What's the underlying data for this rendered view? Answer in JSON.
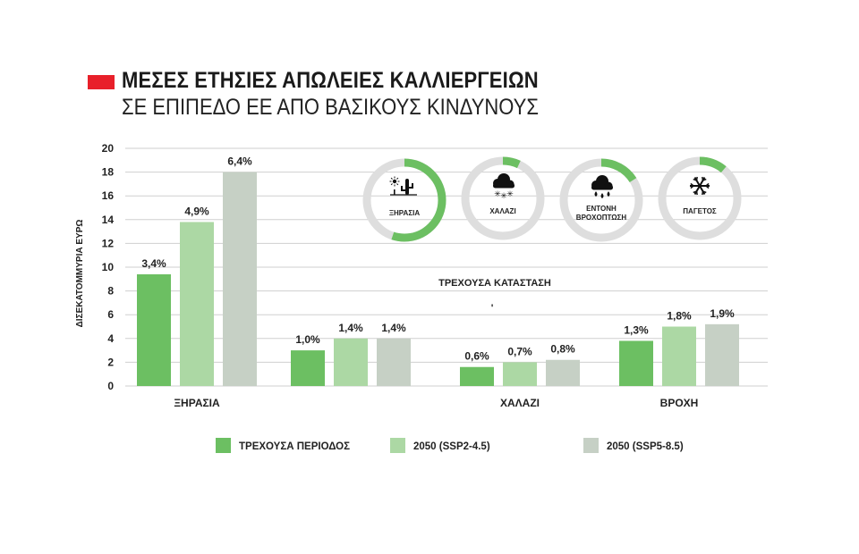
{
  "title": "ΜΕΣΕΣ ΕΤΗΣΙΕΣ ΑΠΩΛΕΙΕΣ ΚΑΛΛΙΕΡΓΕΙΩΝ",
  "subtitle": "ΣΕ ΕΠΙΠΕΔΟ ΕΕ ΑΠΟ ΒΑΣΙΚΟΥΣ ΚΙΝΔΥΝΟΥΣ",
  "colors": {
    "accent": "#e8202a",
    "series": [
      "#6cbf62",
      "#acd8a4",
      "#c6d0c5"
    ],
    "ring_bg": "#dedede",
    "ring_fg": "#6cbf62",
    "grid": "#cfcfcf"
  },
  "chart_data": {
    "type": "bar",
    "title": "ΜΕΣΕΣ ΕΤΗΣΙΕΣ ΑΠΩΛΕΙΕΣ ΚΑΛΛΙΕΡΓΕΙΩΝ",
    "subtitle": "ΣΕ ΕΠΙΠΕΔΟ ΕΕ ΑΠΟ ΒΑΣΙΚΟΥΣ ΚΙΝΔΥΝΟΥΣ",
    "ylabel": "ΔΙΣΕΚΑΤΟΜΜΥΡΙΑ ΕΥΡΩ",
    "xlabel": "",
    "ylim": [
      0,
      20
    ],
    "yticks": [
      0,
      2,
      4,
      6,
      8,
      10,
      12,
      14,
      16,
      18,
      20
    ],
    "grid": true,
    "legend_position": "bottom",
    "categories": [
      "ΞΗΡΑΣΙΑ",
      "",
      "ΧΑΛΑΖΙ",
      "ΒΡΟΧΗ"
    ],
    "series": [
      {
        "name": "ΤΡΕΧΟΥΣΑ ΠΕΡΙΟΔΟΣ",
        "values": [
          9.4,
          3.0,
          1.6,
          3.8
        ],
        "labels": [
          "3,4%",
          "1,0%",
          "0,6%",
          "1,3%"
        ]
      },
      {
        "name": "2050 (SSP2-4.5)",
        "values": [
          13.8,
          4.0,
          2.0,
          5.0
        ],
        "labels": [
          "4,9%",
          "1,4%",
          "0,7%",
          "1,8%"
        ]
      },
      {
        "name": "2050 (SSP5-8.5)",
        "values": [
          18.0,
          4.0,
          2.2,
          5.2
        ],
        "labels": [
          "6,4%",
          "1,4%",
          "0,8%",
          "1,9%"
        ]
      }
    ],
    "annotation": "ΤΡΕΧΟΥΣΑ ΚΑΤΑΣΤΑΣΗ",
    "annotation_mark": "'",
    "donuts": [
      {
        "label_lines": [
          "ΞΗΡΑΣΙΑ"
        ],
        "icon": "drought-cactus-sun-icon",
        "fraction": 0.55
      },
      {
        "label_lines": [
          "ΧΑΛΑΖΙ"
        ],
        "icon": "hail-cloud-icon",
        "fraction": 0.07
      },
      {
        "label_lines": [
          "ΕΝΤΟΝΗ",
          "ΒΡΟΧΟΠΤΩΣΗ"
        ],
        "icon": "heavy-rain-cloud-icon",
        "fraction": 0.16
      },
      {
        "label_lines": [
          "ΠΑΓΕΤΟΣ"
        ],
        "icon": "frost-snowflake-icon",
        "fraction": 0.11
      }
    ]
  }
}
